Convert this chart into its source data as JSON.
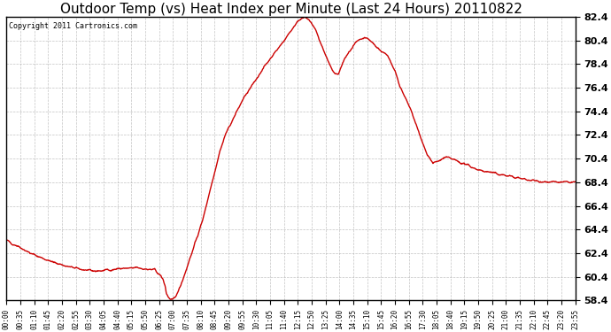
{
  "title": "Outdoor Temp (vs) Heat Index per Minute (Last 24 Hours) 20110822",
  "copyright_text": "Copyright 2011 Cartronics.com",
  "line_color": "#cc0000",
  "line_width": 1.0,
  "background_color": "#ffffff",
  "grid_color": "#aaaaaa",
  "ylim": [
    58.4,
    82.4
  ],
  "yticks": [
    58.4,
    60.4,
    62.4,
    64.4,
    66.4,
    68.4,
    70.4,
    72.4,
    74.4,
    76.4,
    78.4,
    80.4,
    82.4
  ],
  "xtick_labels": [
    "00:00",
    "00:35",
    "01:10",
    "01:45",
    "02:20",
    "02:55",
    "03:30",
    "04:05",
    "04:40",
    "05:15",
    "05:50",
    "06:25",
    "07:00",
    "07:35",
    "08:10",
    "08:45",
    "09:20",
    "09:55",
    "10:30",
    "11:05",
    "11:40",
    "12:15",
    "12:50",
    "13:25",
    "14:00",
    "14:35",
    "15:10",
    "15:45",
    "16:20",
    "16:55",
    "17:30",
    "18:05",
    "18:40",
    "19:15",
    "19:50",
    "20:25",
    "21:00",
    "21:35",
    "22:10",
    "22:45",
    "23:20",
    "23:55"
  ],
  "title_fontsize": 11,
  "copyright_fontsize": 6,
  "ytick_fontsize": 8,
  "xtick_fontsize": 5.5,
  "keypoints_t": [
    0,
    0.25,
    0.5,
    0.75,
    1.0,
    1.25,
    1.5,
    1.75,
    2.0,
    2.25,
    2.5,
    2.75,
    3.0,
    3.25,
    3.5,
    3.75,
    4.0,
    4.25,
    4.5,
    4.75,
    5.0,
    5.25,
    5.5,
    5.75,
    6.0,
    6.25,
    6.5,
    6.6,
    6.7,
    6.75,
    6.8,
    6.9,
    7.0,
    7.1,
    7.25,
    7.5,
    7.75,
    8.0,
    8.25,
    8.5,
    8.75,
    9.0,
    9.25,
    9.5,
    9.75,
    10.0,
    10.25,
    10.5,
    10.75,
    11.0,
    11.25,
    11.5,
    11.75,
    12.0,
    12.1,
    12.25,
    12.4,
    12.5,
    12.6,
    12.75,
    13.0,
    13.1,
    13.25,
    13.5,
    13.6,
    13.75,
    14.0,
    14.1,
    14.25,
    14.5,
    14.6,
    14.75,
    15.0,
    15.1,
    15.25,
    15.4,
    15.5,
    15.6,
    15.75,
    16.0,
    16.1,
    16.25,
    16.4,
    16.5,
    16.6,
    16.75,
    17.0,
    17.25,
    17.5,
    17.75,
    18.0,
    18.25,
    18.5,
    18.75,
    19.0,
    19.25,
    19.5,
    19.75,
    20.0,
    20.25,
    20.5,
    20.75,
    21.0,
    21.25,
    21.5,
    21.75,
    22.0,
    22.25,
    22.5,
    22.75,
    23.0,
    23.25,
    23.5,
    23.75,
    24.0
  ],
  "keypoints_v": [
    63.5,
    63.2,
    63.0,
    62.7,
    62.4,
    62.2,
    62.0,
    61.8,
    61.6,
    61.5,
    61.3,
    61.2,
    61.1,
    61.0,
    60.9,
    60.9,
    60.9,
    61.0,
    61.0,
    61.1,
    61.1,
    61.1,
    61.2,
    61.1,
    61.0,
    61.0,
    60.5,
    60.2,
    59.6,
    59.0,
    58.8,
    58.5,
    58.4,
    58.6,
    59.2,
    60.5,
    62.0,
    63.5,
    65.0,
    67.0,
    69.0,
    71.0,
    72.5,
    73.5,
    74.5,
    75.5,
    76.2,
    77.0,
    77.8,
    78.5,
    79.2,
    79.8,
    80.5,
    81.2,
    81.5,
    81.9,
    82.2,
    82.4,
    82.35,
    82.1,
    81.5,
    81.0,
    80.2,
    79.0,
    78.5,
    77.8,
    77.5,
    78.0,
    78.8,
    79.5,
    79.8,
    80.2,
    80.5,
    80.6,
    80.5,
    80.3,
    80.1,
    79.9,
    79.6,
    79.2,
    79.0,
    78.5,
    77.8,
    77.2,
    76.5,
    75.8,
    74.8,
    73.5,
    72.0,
    70.8,
    70.0,
    70.2,
    70.5,
    70.4,
    70.2,
    70.0,
    69.8,
    69.6,
    69.4,
    69.3,
    69.2,
    69.1,
    69.0,
    68.9,
    68.8,
    68.7,
    68.6,
    68.55,
    68.5,
    68.45,
    68.4,
    68.4,
    68.4,
    68.4,
    68.4
  ]
}
